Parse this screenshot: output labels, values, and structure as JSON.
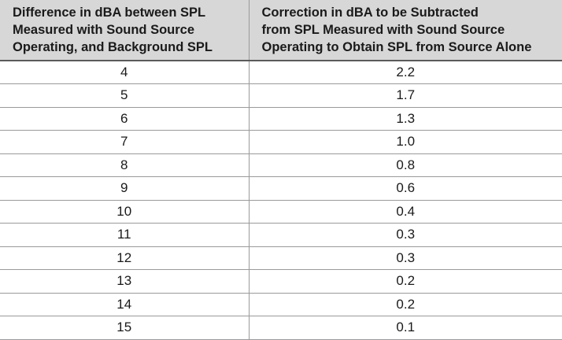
{
  "table": {
    "headers": [
      {
        "lines": [
          "Difference in dBA between SPL",
          "Measured with Sound Source",
          "Operating, and Background SPL"
        ]
      },
      {
        "lines": [
          "Correction in dBA to be Subtracted",
          "from SPL Measured with Sound Source",
          "Operating to Obtain SPL from Source Alone"
        ]
      }
    ],
    "rows": [
      [
        "4",
        "2.2"
      ],
      [
        "5",
        "1.7"
      ],
      [
        "6",
        "1.3"
      ],
      [
        "7",
        "1.0"
      ],
      [
        "8",
        "0.8"
      ],
      [
        "9",
        "0.6"
      ],
      [
        "10",
        "0.4"
      ],
      [
        "11",
        "0.3"
      ],
      [
        "12",
        "0.3"
      ],
      [
        "13",
        "0.2"
      ],
      [
        "14",
        "0.2"
      ],
      [
        "15",
        "0.1"
      ]
    ]
  }
}
